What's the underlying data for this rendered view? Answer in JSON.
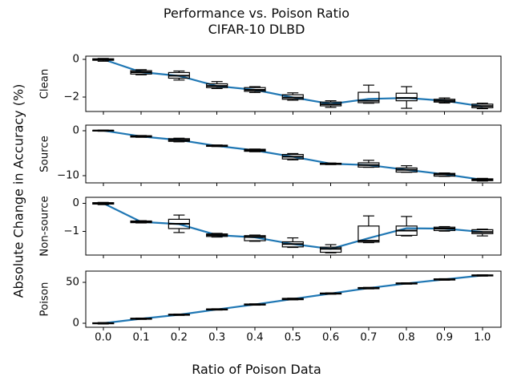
{
  "chart_data": {
    "type": "line+boxplot",
    "title": "Performance vs. Poison Ratio",
    "subtitle": "CIFAR-10 DLBD",
    "xlabel": "Ratio of Poison Data",
    "ylabel": "Absolute Change in Accuracy (%)",
    "legend": "none",
    "grid": false,
    "line_color": "#1f77b4",
    "box_color": "#000000",
    "x": [
      0.0,
      0.1,
      0.2,
      0.3,
      0.4,
      0.5,
      0.6,
      0.7,
      0.8,
      0.9,
      1.0
    ],
    "x_tick_labels": [
      "0.0",
      "0.1",
      "0.2",
      "0.3",
      "0.4",
      "0.5",
      "0.6",
      "0.7",
      "0.8",
      "0.9",
      "1.0"
    ],
    "xlim": [
      -0.046,
      1.049
    ],
    "box_stats_order": [
      "median",
      "q_hi",
      "q_lo",
      "whisker_hi",
      "whisker_lo"
    ],
    "subplots": [
      {
        "label": "Clean",
        "ylim": [
          -2.77,
          0.17
        ],
        "yticks": [
          {
            "value": 0,
            "label": "0"
          },
          {
            "value": -2,
            "label": "−2"
          }
        ],
        "line": [
          0.0,
          -0.68,
          -0.88,
          -1.42,
          -1.62,
          -2.02,
          -2.37,
          -2.1,
          -2.05,
          -2.2,
          -2.5
        ],
        "boxes": [
          [
            0.0,
            0.03,
            -0.05,
            0.05,
            -0.1
          ],
          [
            -0.68,
            -0.6,
            -0.78,
            -0.55,
            -0.82
          ],
          [
            -0.87,
            -0.7,
            -1.0,
            -0.62,
            -1.1
          ],
          [
            -1.41,
            -1.3,
            -1.5,
            -1.18,
            -1.55
          ],
          [
            -1.62,
            -1.5,
            -1.7,
            -1.45,
            -1.76
          ],
          [
            -2.03,
            -1.88,
            -2.12,
            -1.78,
            -2.17
          ],
          [
            -2.38,
            -2.27,
            -2.47,
            -2.2,
            -2.55
          ],
          [
            -2.2,
            -1.75,
            -2.3,
            -1.37,
            -2.33
          ],
          [
            -2.05,
            -1.8,
            -2.2,
            -1.45,
            -2.6
          ],
          [
            -2.2,
            -2.12,
            -2.27,
            -2.05,
            -2.32
          ],
          [
            -2.48,
            -2.38,
            -2.57,
            -2.33,
            -2.62
          ]
        ]
      },
      {
        "label": "Source",
        "ylim": [
          -11.6,
          1.2
        ],
        "yticks": [
          {
            "value": 0,
            "label": "0"
          },
          {
            "value": -10,
            "label": "−10"
          }
        ],
        "line": [
          0.0,
          -1.3,
          -2.1,
          -3.4,
          -4.4,
          -5.8,
          -7.35,
          -7.65,
          -8.7,
          -9.7,
          -10.9
        ],
        "boxes": [
          [
            0.0,
            0.05,
            -0.1,
            0.1,
            -0.15
          ],
          [
            -1.3,
            -1.15,
            -1.45,
            -1.1,
            -1.5
          ],
          [
            -2.1,
            -1.8,
            -2.4,
            -1.7,
            -2.5
          ],
          [
            -3.4,
            -3.25,
            -3.5,
            -3.2,
            -3.55
          ],
          [
            -4.4,
            -4.15,
            -4.6,
            -4.1,
            -4.7
          ],
          [
            -5.8,
            -5.3,
            -6.3,
            -5.1,
            -6.5
          ],
          [
            -7.35,
            -7.25,
            -7.5,
            -7.2,
            -7.55
          ],
          [
            -7.65,
            -7.15,
            -8.1,
            -6.6,
            -8.15
          ],
          [
            -8.7,
            -8.3,
            -9.2,
            -7.8,
            -9.25
          ],
          [
            -9.7,
            -9.5,
            -10.1,
            -9.4,
            -10.15
          ],
          [
            -10.9,
            -10.7,
            -11.1,
            -10.6,
            -11.2
          ]
        ]
      },
      {
        "label": "Non-source",
        "ylim": [
          -1.84,
          0.21
        ],
        "yticks": [
          {
            "value": 0,
            "label": "0"
          },
          {
            "value": -1,
            "label": "−1"
          }
        ],
        "line": [
          0.0,
          -0.66,
          -0.74,
          -1.13,
          -1.21,
          -1.45,
          -1.62,
          -1.24,
          -0.89,
          -0.9,
          -1.02
        ],
        "boxes": [
          [
            0.0,
            0.02,
            -0.03,
            0.03,
            -0.05
          ],
          [
            -0.66,
            -0.63,
            -0.69,
            -0.62,
            -0.7
          ],
          [
            -0.73,
            -0.57,
            -0.9,
            -0.42,
            -1.04
          ],
          [
            -1.13,
            -1.09,
            -1.18,
            -1.07,
            -1.2
          ],
          [
            -1.2,
            -1.15,
            -1.33,
            -1.13,
            -1.35
          ],
          [
            -1.45,
            -1.37,
            -1.55,
            -1.23,
            -1.57
          ],
          [
            -1.62,
            -1.56,
            -1.74,
            -1.47,
            -1.76
          ],
          [
            -1.33,
            -0.81,
            -1.38,
            -0.45,
            -1.4
          ],
          [
            -0.97,
            -0.81,
            -1.14,
            -0.47,
            -1.16
          ],
          [
            -0.9,
            -0.85,
            -0.97,
            -0.83,
            -0.99
          ],
          [
            -1.02,
            -0.94,
            -1.08,
            -0.92,
            -1.16
          ]
        ]
      },
      {
        "label": "Poison",
        "ylim": [
          -4.9,
          63.7
        ],
        "yticks": [
          {
            "value": 50,
            "label": "50"
          },
          {
            "value": 0,
            "label": "0"
          }
        ],
        "line": [
          0.0,
          5.5,
          10.4,
          16.9,
          22.9,
          29.6,
          36.3,
          42.9,
          48.6,
          53.5,
          58.4
        ],
        "boxes": [
          [
            0.0,
            0.5,
            -0.6,
            0.8,
            -0.9
          ],
          [
            5.5,
            6.1,
            4.9,
            6.3,
            4.7
          ],
          [
            10.4,
            11.0,
            9.8,
            11.2,
            9.6
          ],
          [
            16.9,
            17.5,
            16.3,
            17.7,
            16.1
          ],
          [
            22.9,
            23.5,
            22.3,
            23.7,
            22.1
          ],
          [
            29.6,
            30.4,
            28.8,
            30.6,
            28.6
          ],
          [
            36.3,
            36.9,
            35.7,
            37.1,
            35.5
          ],
          [
            42.9,
            43.6,
            42.2,
            43.8,
            42.0
          ],
          [
            48.6,
            49.2,
            48.0,
            49.4,
            47.8
          ],
          [
            53.5,
            54.2,
            52.8,
            54.4,
            52.6
          ],
          [
            58.4,
            59.0,
            57.8,
            59.2,
            57.6
          ]
        ]
      }
    ]
  }
}
